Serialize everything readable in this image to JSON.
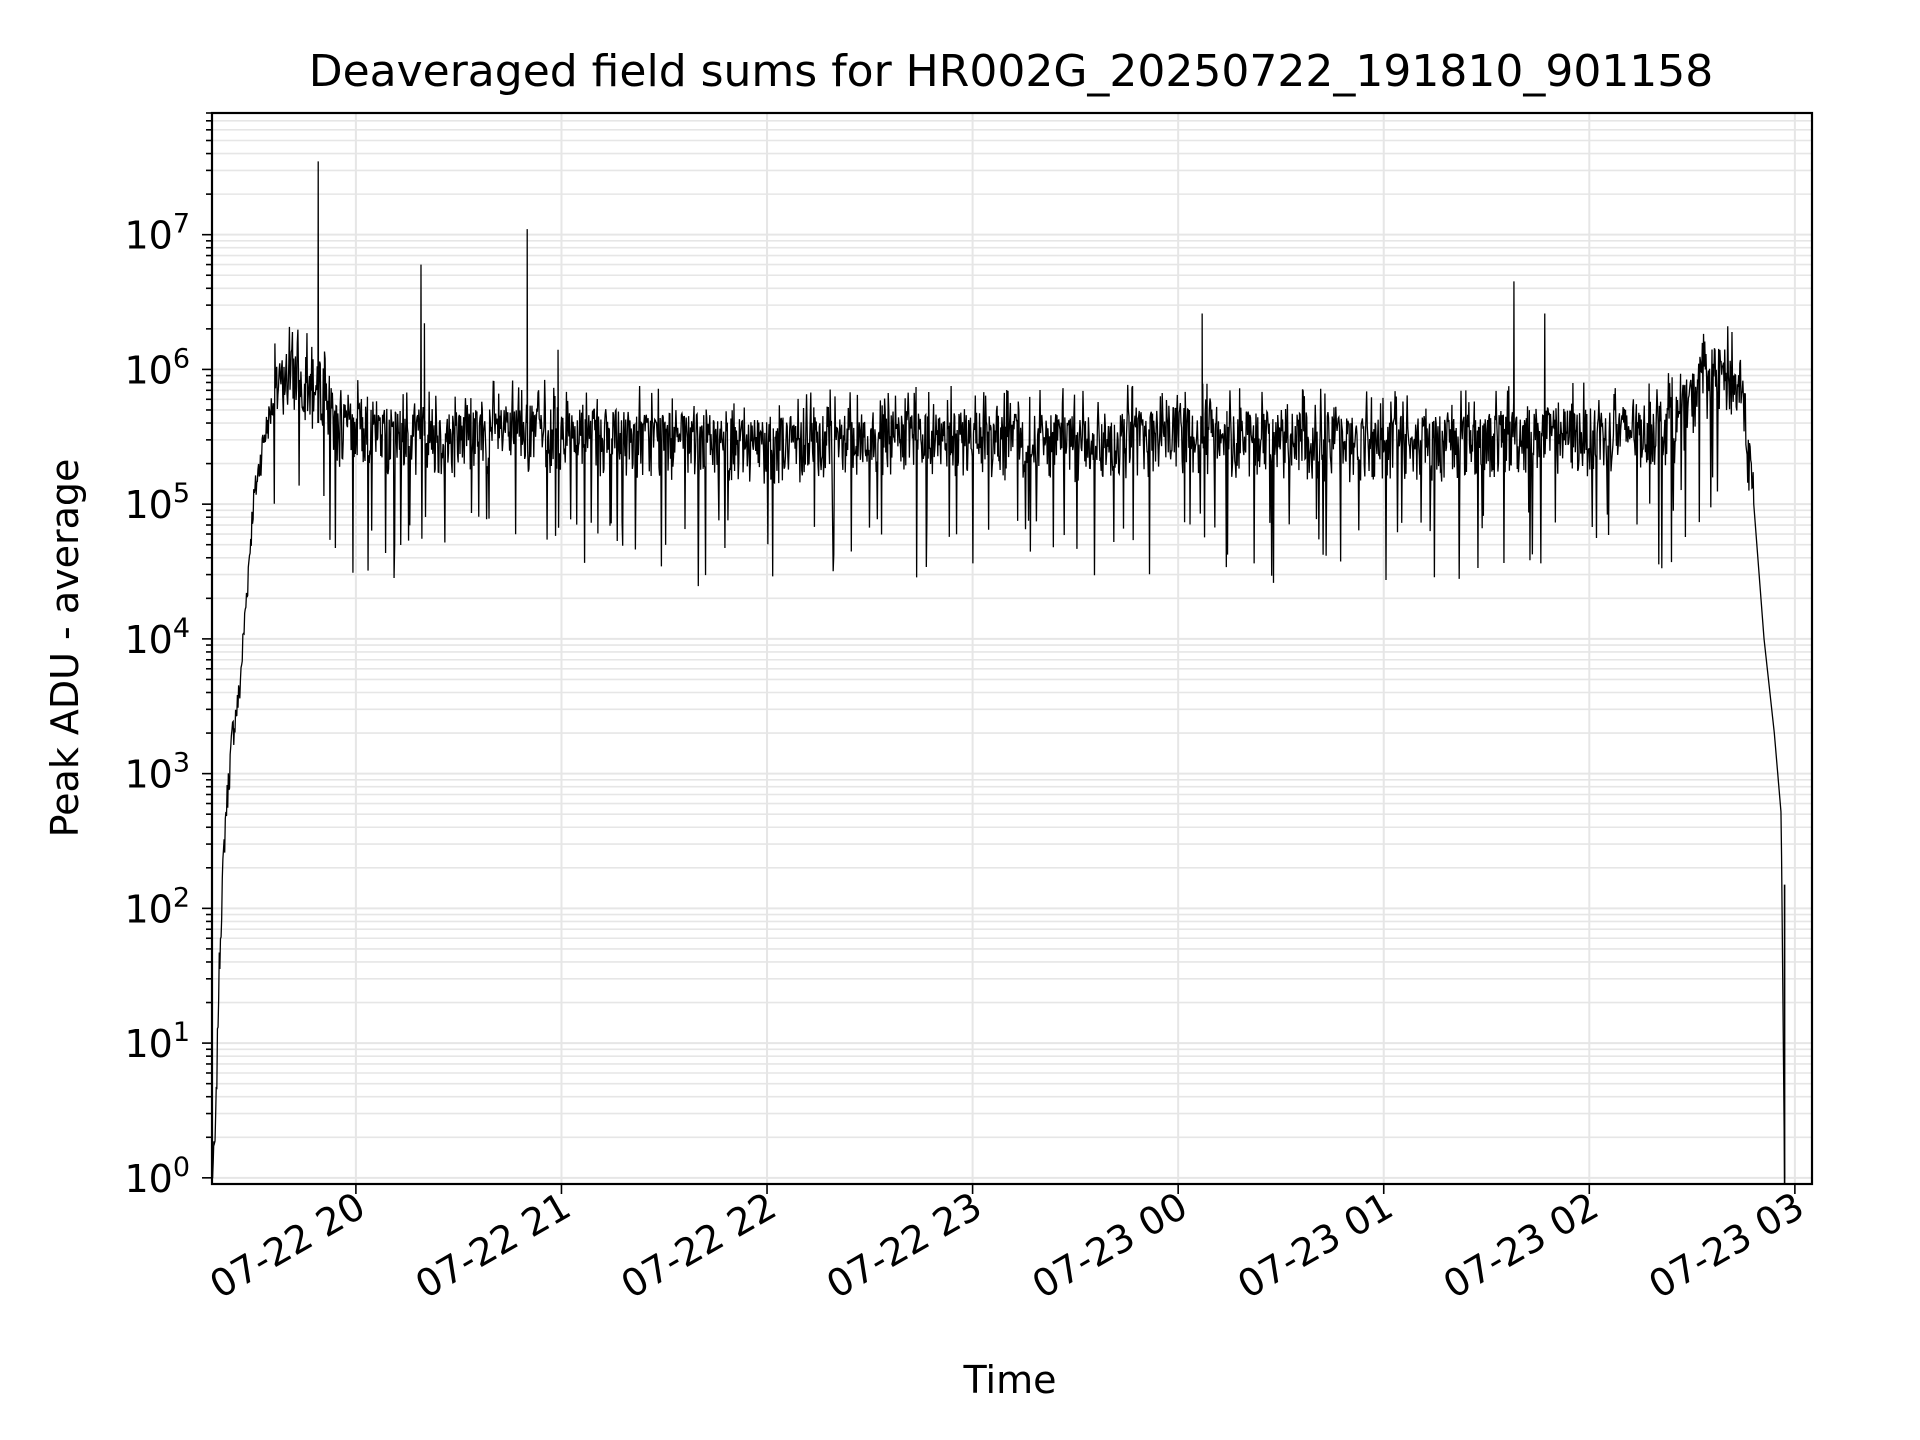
{
  "chart_data": {
    "type": "line",
    "title": "Deaveraged field sums for HR002G_20250722_191810_901158",
    "xlabel": "Time",
    "ylabel": "Peak ADU - average",
    "yscale": "log",
    "ylim": [
      0.9,
      80000000
    ],
    "xlim": [
      "2025-07-22 19:18",
      "2025-07-23 03:05"
    ],
    "grid": true,
    "line_color": "#000000",
    "grid_color": "#e6e6e6",
    "x_ticks": [
      {
        "value": "2025-07-22 20:00",
        "label": "07-22 20"
      },
      {
        "value": "2025-07-22 21:00",
        "label": "07-22 21"
      },
      {
        "value": "2025-07-22 22:00",
        "label": "07-22 22"
      },
      {
        "value": "2025-07-22 23:00",
        "label": "07-22 23"
      },
      {
        "value": "2025-07-23 00:00",
        "label": "07-23 00"
      },
      {
        "value": "2025-07-23 01:00",
        "label": "07-23 01"
      },
      {
        "value": "2025-07-23 02:00",
        "label": "07-23 02"
      },
      {
        "value": "2025-07-23 03:00",
        "label": "07-23 03"
      }
    ],
    "y_ticks": [
      {
        "value": 1,
        "base": "10",
        "exp": "0"
      },
      {
        "value": 10,
        "base": "10",
        "exp": "1"
      },
      {
        "value": 100,
        "base": "10",
        "exp": "2"
      },
      {
        "value": 1000,
        "base": "10",
        "exp": "3"
      },
      {
        "value": 10000,
        "base": "10",
        "exp": "4"
      },
      {
        "value": 100000,
        "base": "10",
        "exp": "5"
      },
      {
        "value": 1000000,
        "base": "10",
        "exp": "6"
      },
      {
        "value": 10000000,
        "base": "10",
        "exp": "7"
      }
    ],
    "series": [
      {
        "x": [
          "2025-07-22 19:18",
          "2025-07-22 19:19",
          "2025-07-22 19:20",
          "2025-07-22 19:21",
          "2025-07-22 19:22",
          "2025-07-22 19:24",
          "2025-07-22 19:26",
          "2025-07-22 19:28",
          "2025-07-22 19:30",
          "2025-07-22 19:33",
          "2025-07-22 19:36",
          "2025-07-22 19:39",
          "2025-07-22 19:42",
          "2025-07-22 19:45",
          "2025-07-22 19:48",
          "2025-07-22 19:50",
          "2025-07-22 19:52",
          "2025-07-22 19:54",
          "2025-07-22 19:56",
          "2025-07-22 19:58",
          "2025-07-22 20:00",
          "2025-07-22 20:05",
          "2025-07-22 20:10",
          "2025-07-22 20:15",
          "2025-07-22 20:20",
          "2025-07-22 20:25",
          "2025-07-22 20:30",
          "2025-07-22 20:40",
          "2025-07-22 20:50",
          "2025-07-22 21:00",
          "2025-07-22 21:30",
          "2025-07-22 22:00",
          "2025-07-22 22:30",
          "2025-07-22 23:00",
          "2025-07-22 23:30",
          "2025-07-23 00:00",
          "2025-07-23 00:30",
          "2025-07-23 01:00",
          "2025-07-23 01:30",
          "2025-07-23 01:45",
          "2025-07-23 02:00",
          "2025-07-23 02:15",
          "2025-07-23 02:25",
          "2025-07-23 02:30",
          "2025-07-23 02:33",
          "2025-07-23 02:36",
          "2025-07-23 02:39",
          "2025-07-23 02:42",
          "2025-07-23 02:45",
          "2025-07-23 02:48",
          "2025-07-23 02:51",
          "2025-07-23 02:54",
          "2025-07-23 02:56",
          "2025-07-23 02:57"
        ],
        "y": [
          1,
          2,
          30,
          150,
          500,
          2000,
          4000,
          20000,
          100000,
          300000,
          600000,
          850000,
          900000,
          800000,
          600000,
          800000,
          500000,
          400000,
          350000,
          350000,
          350000,
          380000,
          320000,
          300000,
          350000,
          300000,
          320000,
          330000,
          340000,
          330000,
          300000,
          280000,
          310000,
          300000,
          290000,
          330000,
          300000,
          280000,
          300000,
          330000,
          320000,
          350000,
          400000,
          600000,
          800000,
          900000,
          900000,
          800000,
          500000,
          100000,
          10000,
          2000,
          500,
          1
        ],
        "spikes": [
          {
            "x": "2025-07-22 19:49",
            "y": 35000000
          },
          {
            "x": "2025-07-22 20:19",
            "y": 6000000
          },
          {
            "x": "2025-07-22 20:20",
            "y": 2200000
          },
          {
            "x": "2025-07-22 20:50",
            "y": 11000000
          },
          {
            "x": "2025-07-22 20:59",
            "y": 1400000
          },
          {
            "x": "2025-07-23 00:07",
            "y": 2600000
          },
          {
            "x": "2025-07-23 01:38",
            "y": 4500000
          },
          {
            "x": "2025-07-23 01:47",
            "y": 2600000
          }
        ]
      }
    ]
  }
}
